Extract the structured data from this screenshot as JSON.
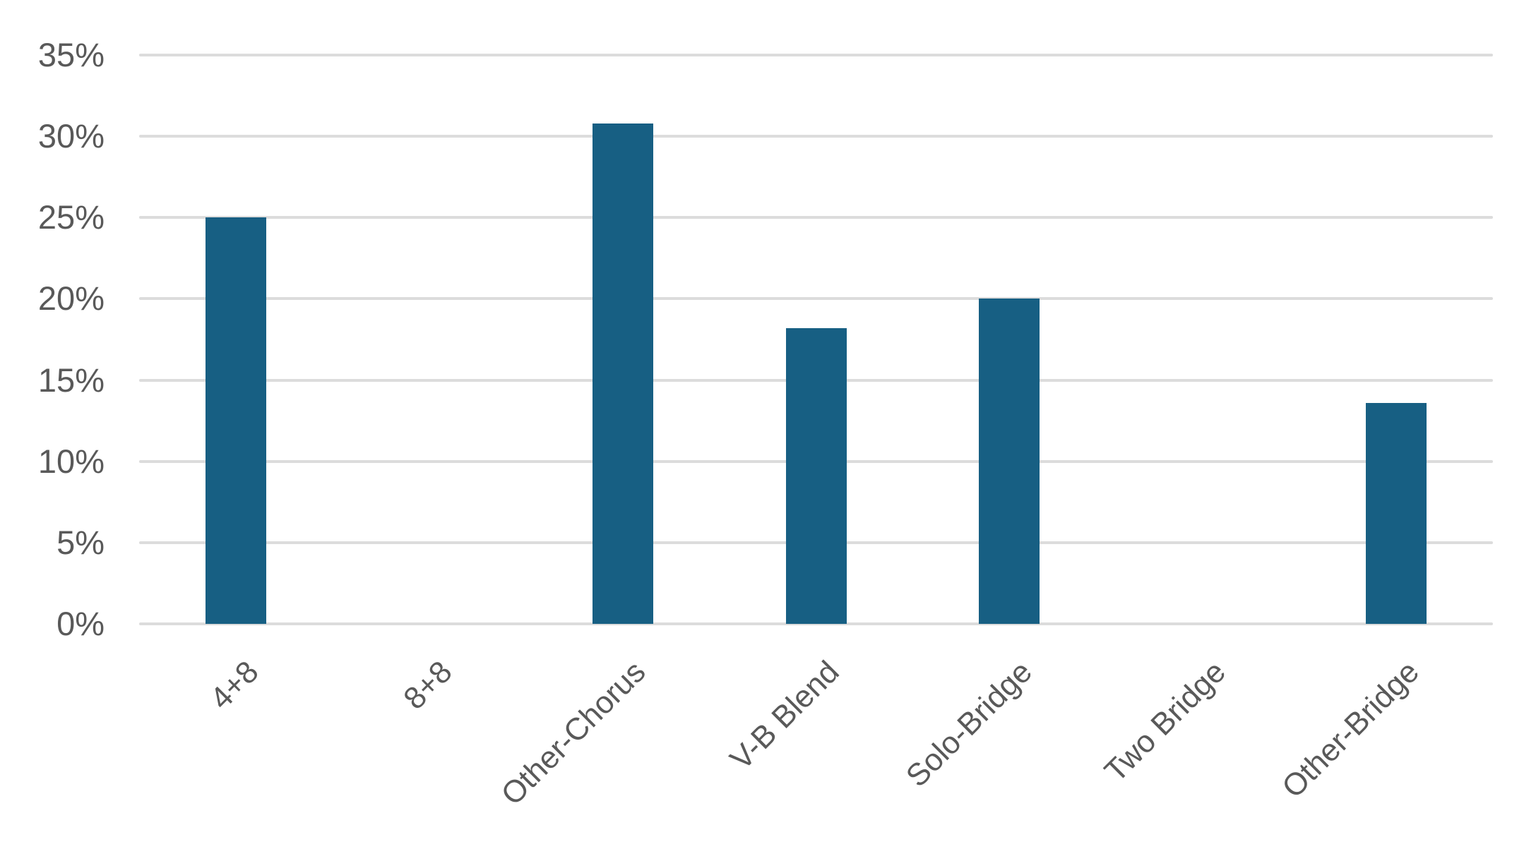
{
  "chart_data": {
    "type": "bar",
    "title": "",
    "xlabel": "",
    "ylabel": "",
    "categories": [
      "4+8",
      "8+8",
      "Other-Chorus",
      "V-B Blend",
      "Solo-Bridge",
      "Two Bridge",
      "Other-Bridge"
    ],
    "values": [
      25.0,
      0,
      30.8,
      18.2,
      20.0,
      0,
      13.6
    ],
    "value_unit": "%",
    "ylim": [
      0,
      35
    ],
    "y_tick_step": 5,
    "y_ticks": [
      {
        "value": 0,
        "label": "0%"
      },
      {
        "value": 5,
        "label": "5%"
      },
      {
        "value": 10,
        "label": "10%"
      },
      {
        "value": 15,
        "label": "15%"
      },
      {
        "value": 20,
        "label": "20%"
      },
      {
        "value": 25,
        "label": "25%"
      },
      {
        "value": 30,
        "label": "30%"
      },
      {
        "value": 35,
        "label": "35%"
      }
    ],
    "grid": true,
    "legend": false,
    "x_label_rotation_deg": 45,
    "colors": {
      "bar": "#16608A",
      "bar_fill": "#175F83",
      "gridline": "#DCDCDC",
      "text": "#595959",
      "background": "#FFFFFF"
    }
  }
}
